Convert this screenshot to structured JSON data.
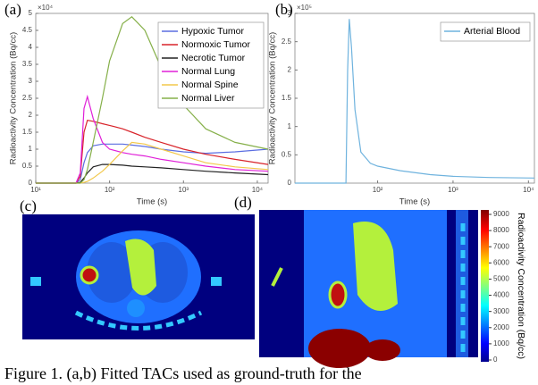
{
  "chart_data": [
    {
      "type": "line",
      "panel": "(a)",
      "xlabel": "Time (s)",
      "ylabel": "Radioactivity Concentration (Bq/cc)",
      "multiplier": "×10⁴",
      "xscale": "log",
      "xlim": [
        10,
        14000
      ],
      "ylim": [
        0,
        5
      ],
      "xticks": [
        {
          "value": 10,
          "label": "10¹"
        },
        {
          "value": 100,
          "label": "10²"
        },
        {
          "value": 1000,
          "label": "10³"
        },
        {
          "value": 10000,
          "label": "10⁴"
        }
      ],
      "yticks": [
        0,
        0.5,
        1,
        1.5,
        2,
        2.5,
        3,
        3.5,
        4,
        4.5,
        5
      ],
      "legend": "upper-right",
      "x": [
        10,
        35,
        40,
        45,
        50,
        60,
        80,
        100,
        150,
        200,
        300,
        500,
        1000,
        2000,
        5000,
        14000
      ],
      "series": [
        {
          "name": "Hypoxic Tumor",
          "color": "#5b6ee1",
          "values": [
            0,
            0,
            0.1,
            0.6,
            0.9,
            1.1,
            1.15,
            1.15,
            1.15,
            1.12,
            1.08,
            1.0,
            0.92,
            0.88,
            0.92,
            1.0
          ]
        },
        {
          "name": "Normoxic Tumor",
          "color": "#d8232a",
          "values": [
            0,
            0,
            0.2,
            1.5,
            1.85,
            1.82,
            1.75,
            1.7,
            1.6,
            1.5,
            1.35,
            1.2,
            1.0,
            0.85,
            0.7,
            0.55
          ]
        },
        {
          "name": "Necrotic Tumor",
          "color": "#222222",
          "values": [
            0,
            0,
            0.02,
            0.15,
            0.3,
            0.48,
            0.55,
            0.55,
            0.53,
            0.5,
            0.48,
            0.45,
            0.4,
            0.35,
            0.3,
            0.25
          ]
        },
        {
          "name": "Normal Lung",
          "color": "#e020d8",
          "values": [
            0,
            0,
            0.3,
            2.2,
            2.55,
            1.9,
            1.2,
            1.0,
            0.9,
            0.85,
            0.8,
            0.7,
            0.6,
            0.5,
            0.4,
            0.35
          ]
        },
        {
          "name": "Normal Spine",
          "color": "#f2c84b",
          "values": [
            0,
            0,
            0,
            0.02,
            0.05,
            0.15,
            0.35,
            0.55,
            0.95,
            1.2,
            1.15,
            1.0,
            0.8,
            0.6,
            0.48,
            0.4
          ]
        },
        {
          "name": "Normal Liver",
          "color": "#86b04a",
          "values": [
            0,
            0,
            0,
            0.1,
            0.4,
            1.2,
            2.5,
            3.6,
            4.7,
            4.9,
            4.5,
            3.4,
            2.3,
            1.6,
            1.2,
            1.0
          ]
        }
      ]
    },
    {
      "type": "line",
      "panel": "(b)",
      "xlabel": "Time (s)",
      "ylabel": "Radioactivity Concentration (Bq/cc)",
      "multiplier": "×10⁵",
      "xscale": "log",
      "xlim": [
        8,
        12000
      ],
      "ylim": [
        0,
        3
      ],
      "xticks": [
        {
          "value": 100,
          "label": "10²"
        },
        {
          "value": 1000,
          "label": "10³"
        },
        {
          "value": 10000,
          "label": "10⁴"
        }
      ],
      "yticks": [
        0,
        0.5,
        1,
        1.5,
        2,
        2.5,
        3
      ],
      "legend": "upper-right",
      "x": [
        8,
        38,
        40,
        42,
        45,
        50,
        60,
        80,
        100,
        200,
        500,
        1000,
        3000,
        12000
      ],
      "series": [
        {
          "name": "Arterial Blood",
          "color": "#6fb3de",
          "values": [
            0,
            0,
            2.0,
            2.9,
            2.4,
            1.3,
            0.55,
            0.35,
            0.3,
            0.22,
            0.15,
            0.12,
            0.1,
            0.09
          ]
        }
      ]
    }
  ],
  "images": [
    {
      "panel": "(c)"
    },
    {
      "panel": "(d)"
    }
  ],
  "colorbar": {
    "label": "Radioactivity Concentration (Bq/cc)",
    "ticks": [
      0,
      1000,
      2000,
      3000,
      4000,
      5000,
      6000,
      7000,
      8000,
      9000
    ]
  },
  "caption": "Figure 1. (a,b) Fitted TACs used as ground-truth for the"
}
